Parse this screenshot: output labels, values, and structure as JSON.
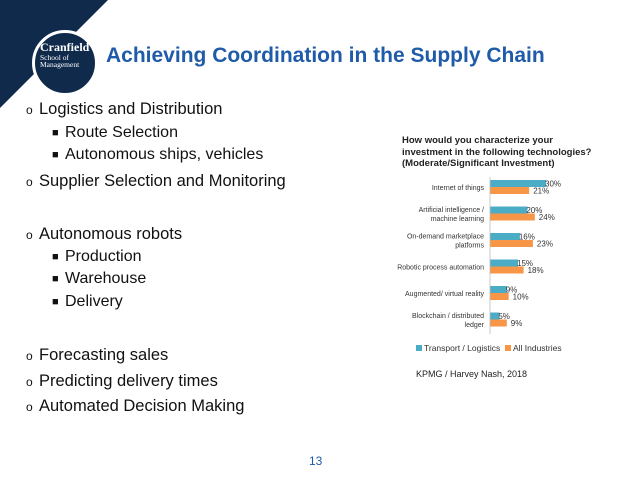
{
  "logo": {
    "name": "Cranfield",
    "line2": "School of",
    "line3": "Management"
  },
  "slide": {
    "title": "Achieving Coordination in the Supply Chain",
    "page_number": "13",
    "bullets": [
      {
        "text": "Logistics and Distribution",
        "marker": "o",
        "level": 1
      },
      {
        "text": "Route Selection",
        "marker": "■",
        "level": 2
      },
      {
        "text": "Autonomous ships, vehicles",
        "marker": "■",
        "level": 2
      },
      {
        "text": "Supplier Selection and Monitoring",
        "marker": "o",
        "level": 1
      },
      {
        "text": "Autonomous robots",
        "marker": "o",
        "level": 1
      },
      {
        "text": "Production",
        "marker": "■",
        "level": 2
      },
      {
        "text": "Warehouse",
        "marker": "■",
        "level": 2
      },
      {
        "text": "Delivery",
        "marker": "■",
        "level": 2
      },
      {
        "text": "Forecasting sales",
        "marker": "o",
        "level": 1
      },
      {
        "text": "Predicting delivery times",
        "marker": "o",
        "level": 1
      },
      {
        "text": "Automated Decision Making",
        "marker": "o",
        "level": 1
      }
    ],
    "source": "KPMG / Harvey Nash, 2018"
  },
  "colors": {
    "title": "#1f5ba8",
    "logo_bg": "#102a4c",
    "series1": "#4bacc6",
    "series2": "#f79646"
  },
  "chart_data": {
    "type": "bar",
    "orientation": "horizontal",
    "title_lines": [
      "How would you characterize your",
      "investment in the following technologies?",
      "(Moderate/Significant Investment)"
    ],
    "categories": [
      [
        "Internet of things"
      ],
      [
        "Artificial intelligence /",
        "machine learning"
      ],
      [
        "On-demand marketplace",
        "platforms"
      ],
      [
        "Robotic process automation"
      ],
      [
        "Augmented/ virtual reality"
      ],
      [
        "Blockchain / distributed",
        "ledger"
      ]
    ],
    "series": [
      {
        "name": "Transport / Logistics",
        "values": [
          30,
          20,
          16,
          15,
          9,
          5
        ],
        "labels": [
          "30%",
          "20%",
          "16%",
          "15%",
          "9%",
          "5%"
        ]
      },
      {
        "name": "All Industries",
        "values": [
          21,
          24,
          23,
          18,
          10,
          9
        ],
        "labels": [
          "21%",
          "24%",
          "23%",
          "18%",
          "10%",
          "9%"
        ]
      }
    ],
    "xlim": [
      0,
      30
    ],
    "legend_position": "bottom",
    "grid": false
  }
}
